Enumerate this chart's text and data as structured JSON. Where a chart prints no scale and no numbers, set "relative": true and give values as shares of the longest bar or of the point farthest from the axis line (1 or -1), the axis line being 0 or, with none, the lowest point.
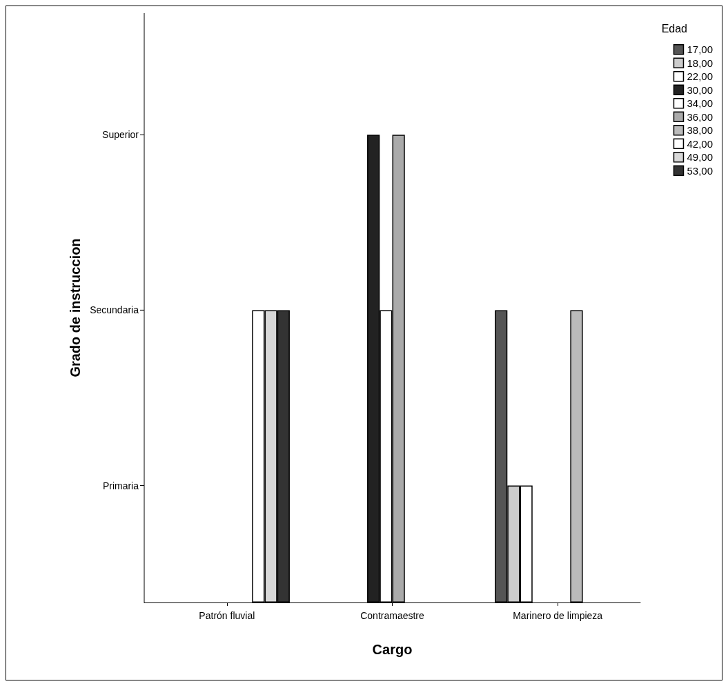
{
  "chart_data": {
    "type": "bar",
    "relative": true,
    "xlabel": "Cargo",
    "ylabel": "Grado de instruccion",
    "legend_title": "Edad",
    "legend": "right",
    "grid": false,
    "categories": [
      "Patrón fluvial",
      "Contramaestre",
      "Marinero de limpieza"
    ],
    "annotations": [
      "Primaria",
      "Secundaria",
      "Superior"
    ],
    "series": [
      {
        "name": "17,00",
        "color": "#555555",
        "values": [
          null,
          null,
          0.625
        ]
      },
      {
        "name": "18,00",
        "color": "#cccccc",
        "values": [
          null,
          null,
          0.25
        ]
      },
      {
        "name": "22,00",
        "color": "#ffffff",
        "values": [
          null,
          null,
          0.25
        ]
      },
      {
        "name": "30,00",
        "color": "#222222",
        "values": [
          null,
          1,
          null
        ]
      },
      {
        "name": "34,00",
        "color": "#ffffff",
        "values": [
          null,
          0.625,
          null
        ]
      },
      {
        "name": "36,00",
        "color": "#aaaaaa",
        "values": [
          null,
          1,
          null
        ]
      },
      {
        "name": "38,00",
        "color": "#bbbbbb",
        "values": [
          null,
          null,
          0.625
        ]
      },
      {
        "name": "42,00",
        "color": "#ffffff",
        "values": [
          0.625,
          null,
          null
        ]
      },
      {
        "name": "49,00",
        "color": "#d8d8d8",
        "values": [
          0.625,
          null,
          null
        ]
      },
      {
        "name": "53,00",
        "color": "#333333",
        "values": [
          0.625,
          null,
          null
        ]
      }
    ]
  }
}
